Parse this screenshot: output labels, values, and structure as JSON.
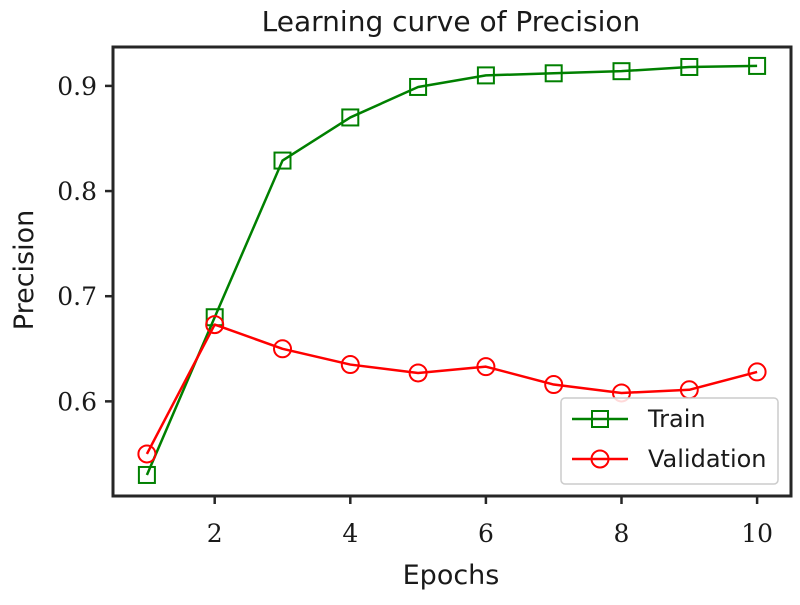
{
  "chart_data": {
    "type": "line",
    "title": "Learning curve of Precision",
    "xlabel": "Epochs",
    "ylabel": "Precision",
    "x": [
      1,
      2,
      3,
      4,
      5,
      6,
      7,
      8,
      9,
      10
    ],
    "xlim": [
      0.5,
      10.5
    ],
    "ylim": [
      0.51,
      0.937
    ],
    "xticks": [
      2,
      4,
      6,
      8,
      10
    ],
    "xtick_labels": [
      "2",
      "4",
      "6",
      "8",
      "10"
    ],
    "yticks": [
      0.6,
      0.7,
      0.8,
      0.9
    ],
    "ytick_labels": [
      "0.6",
      "0.7",
      "0.8",
      "0.9"
    ],
    "grid": false,
    "legend_position": "bottom-right",
    "series": [
      {
        "name": "Train",
        "color": "#008000",
        "marker": "square",
        "values": [
          0.53,
          0.68,
          0.829,
          0.87,
          0.899,
          0.91,
          0.912,
          0.914,
          0.918,
          0.919
        ]
      },
      {
        "name": "Validation",
        "color": "#ff0000",
        "marker": "circle",
        "values": [
          0.55,
          0.673,
          0.65,
          0.635,
          0.627,
          0.633,
          0.616,
          0.608,
          0.611,
          0.628
        ]
      }
    ]
  }
}
